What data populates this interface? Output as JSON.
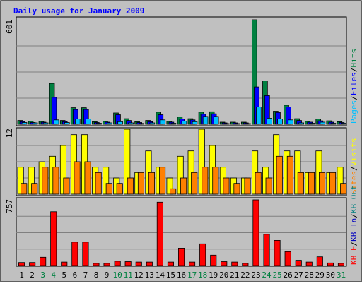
{
  "colors": {
    "background": "#c0c0c0",
    "title": "#0000ff",
    "hits": "#008040",
    "files": "#0000ff",
    "pages": "#00c0ff",
    "visits": "#ffff00",
    "sites": "#ff8000",
    "kb_out": "#008080",
    "kb_in": "#0000c0",
    "kb_f": "#ff0000",
    "weekend_day": "#008040",
    "weekday": "#000000"
  },
  "chart_data": [
    {
      "type": "bar",
      "title": "Daily usage for January 2009",
      "ymax_label": "601",
      "ylim": [
        0,
        601
      ],
      "legend": [
        "Pages",
        "/",
        "Files",
        "/",
        "Hits"
      ],
      "legend_placement": "right",
      "categories": [
        "1",
        "2",
        "3",
        "4",
        "5",
        "6",
        "7",
        "8",
        "9",
        "10",
        "11",
        "12",
        "13",
        "14",
        "15",
        "16",
        "17",
        "18",
        "19",
        "20",
        "21",
        "22",
        "23",
        "24",
        "25",
        "26",
        "27",
        "28",
        "29",
        "30",
        "31"
      ],
      "weekend": [
        3,
        4,
        10,
        11,
        17,
        18,
        24,
        25,
        31
      ],
      "series": [
        {
          "name": "Hits",
          "values": [
            22,
            17,
            17,
            235,
            22,
            95,
            95,
            15,
            17,
            65,
            32,
            15,
            22,
            70,
            17,
            42,
            32,
            70,
            72,
            12,
            12,
            12,
            601,
            250,
            75,
            110,
            32,
            17,
            30,
            20,
            15
          ]
        },
        {
          "name": "Files",
          "values": [
            15,
            10,
            12,
            155,
            15,
            85,
            85,
            10,
            12,
            55,
            22,
            10,
            15,
            55,
            12,
            30,
            25,
            58,
            60,
            8,
            8,
            8,
            215,
            165,
            68,
            100,
            22,
            12,
            20,
            12,
            10
          ]
        },
        {
          "name": "Pages",
          "values": [
            10,
            8,
            8,
            25,
            10,
            30,
            30,
            6,
            8,
            15,
            8,
            5,
            8,
            25,
            6,
            18,
            15,
            45,
            45,
            4,
            4,
            4,
            100,
            35,
            30,
            25,
            8,
            6,
            12,
            6,
            6
          ]
        }
      ]
    },
    {
      "type": "bar",
      "ymax_label": "12",
      "ylim": [
        0,
        12
      ],
      "legend": [
        "Sites",
        "/",
        "Visits"
      ],
      "legend_placement": "right",
      "categories": [
        "1",
        "2",
        "3",
        "4",
        "5",
        "6",
        "7",
        "8",
        "9",
        "10",
        "11",
        "12",
        "13",
        "14",
        "15",
        "16",
        "17",
        "18",
        "19",
        "20",
        "21",
        "22",
        "23",
        "24",
        "25",
        "26",
        "27",
        "28",
        "29",
        "30",
        "31"
      ],
      "series": [
        {
          "name": "Visits",
          "values": [
            5,
            5,
            6,
            7,
            9,
            11,
            11,
            5,
            5,
            3,
            12,
            4,
            8,
            5,
            3,
            7,
            8,
            12,
            9,
            5,
            3,
            3,
            8,
            5,
            11,
            8,
            8,
            4,
            8,
            4,
            5
          ]
        },
        {
          "name": "Sites",
          "values": [
            2,
            2,
            5,
            5,
            3,
            6,
            6,
            4,
            2,
            2,
            3,
            4,
            4,
            5,
            1,
            3,
            4,
            5,
            5,
            3,
            2,
            3,
            4,
            3,
            7,
            7,
            4,
            4,
            4,
            4,
            2
          ]
        }
      ]
    },
    {
      "type": "bar",
      "ymax_label": "757",
      "ylim": [
        0,
        757
      ],
      "legend": [
        "KB F",
        "/",
        "KB In",
        "/",
        "KB Out"
      ],
      "legend_placement": "right",
      "categories": [
        "1",
        "2",
        "3",
        "4",
        "5",
        "6",
        "7",
        "8",
        "9",
        "10",
        "11",
        "12",
        "13",
        "14",
        "15",
        "16",
        "17",
        "18",
        "19",
        "20",
        "21",
        "22",
        "23",
        "24",
        "25",
        "26",
        "27",
        "28",
        "29",
        "30",
        "31"
      ],
      "series": [
        {
          "name": "KB F",
          "values": [
            35,
            35,
            95,
            620,
            40,
            270,
            270,
            25,
            25,
            50,
            45,
            40,
            40,
            730,
            40,
            200,
            40,
            250,
            120,
            45,
            40,
            25,
            757,
            360,
            290,
            160,
            60,
            40,
            100,
            30,
            25
          ]
        }
      ]
    }
  ]
}
